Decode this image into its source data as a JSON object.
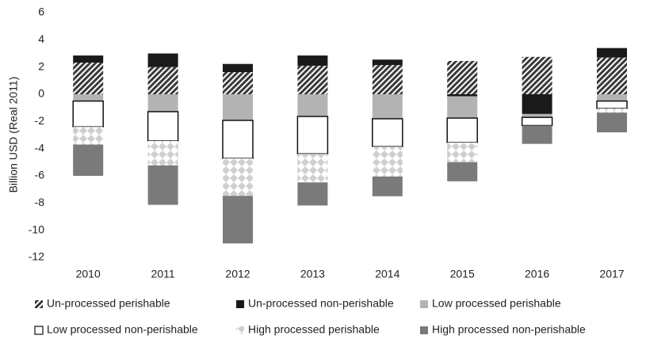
{
  "chart_data": {
    "type": "bar",
    "stacked": true,
    "y_label": "Billion USD (Real 2011)",
    "categories": [
      "2010",
      "2011",
      "2012",
      "2013",
      "2014",
      "2015",
      "2016",
      "2017"
    ],
    "ylim": [
      -12,
      6
    ],
    "yticks": [
      -12,
      -10,
      -8,
      -6,
      -4,
      -2,
      0,
      2,
      4,
      6
    ],
    "grid": false,
    "series": [
      {
        "name": "Un-processed perishable",
        "color": "#3a3a3a",
        "pattern": "hatch",
        "values": [
          2.33,
          2.0,
          1.63,
          2.1,
          2.15,
          2.45,
          2.75,
          2.7
        ]
      },
      {
        "name": "Un-processed non-perishable",
        "color": "#1a1a1a",
        "pattern": "solid",
        "values": [
          0.52,
          1.0,
          0.6,
          0.75,
          0.4,
          -0.15,
          -1.45,
          0.7
        ]
      },
      {
        "name": "Low processed perishable",
        "color": "#b3b3b3",
        "pattern": "solid",
        "values": [
          -0.5,
          -1.28,
          -1.92,
          -1.63,
          -1.8,
          -1.6,
          -0.25,
          -0.5
        ]
      },
      {
        "name": "Low processed non-perishable",
        "color": "#ffffff",
        "pattern": "outline",
        "values": [
          -1.9,
          -2.15,
          -2.8,
          -2.75,
          -2.05,
          -1.8,
          -0.6,
          -0.55
        ]
      },
      {
        "name": "High processed perishable",
        "color": "#cfcfcf",
        "pattern": "diamond",
        "values": [
          -1.3,
          -1.8,
          -2.75,
          -2.1,
          -2.2,
          -1.45,
          0,
          -0.3
        ]
      },
      {
        "name": "High processed non-perishable",
        "color": "#7a7a7a",
        "pattern": "solid",
        "values": [
          -2.3,
          -2.9,
          -3.5,
          -1.7,
          -1.45,
          -1.4,
          -1.35,
          -1.45
        ]
      }
    ]
  }
}
